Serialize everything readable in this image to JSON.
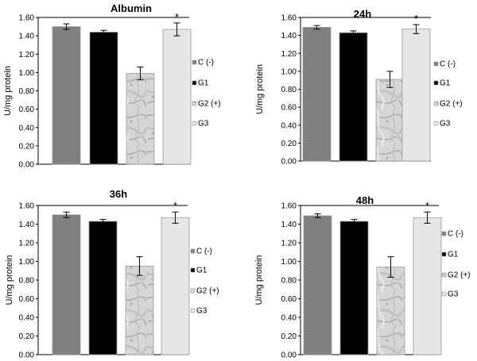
{
  "chart_data": [
    {
      "type": "bar",
      "title": "Albumin",
      "ylabel": "U/mg protein",
      "ylim": [
        0,
        1.6
      ],
      "yticks": [
        "0.00",
        "0.20",
        "0.40",
        "0.60",
        "0.80",
        "1.00",
        "1.20",
        "1.40",
        "1.60"
      ],
      "categories": [
        "C (-)",
        "G1",
        "G2 (+)",
        "G3"
      ],
      "values": [
        1.5,
        1.44,
        0.99,
        1.47
      ],
      "errors": [
        0.03,
        0.02,
        0.07,
        0.07
      ],
      "significance": [
        "",
        "",
        "",
        "*"
      ],
      "legend": [
        "C (-)",
        "G1",
        "G2 (+)",
        "G3"
      ],
      "legend_position": "right",
      "colors": [
        "#808080",
        "#000000",
        "#d2d2d2",
        "#e6e6e6"
      ]
    },
    {
      "type": "bar",
      "title": "24h",
      "ylabel": "U/mg protein",
      "ylim": [
        0,
        1.6
      ],
      "yticks": [
        "0.00",
        "0.20",
        "0.40",
        "0.60",
        "0.80",
        "1.00",
        "1.20",
        "1.40",
        "1.60"
      ],
      "categories": [
        "C (-)",
        "G1",
        "G2 (+)",
        "G3"
      ],
      "values": [
        1.49,
        1.43,
        0.91,
        1.47
      ],
      "errors": [
        0.02,
        0.02,
        0.09,
        0.05
      ],
      "significance": [
        "",
        "",
        "",
        "*"
      ],
      "legend": [
        "C (-)",
        "G1",
        "G2 (+)",
        "G3"
      ],
      "legend_position": "right",
      "colors": [
        "#808080",
        "#000000",
        "#d2d2d2",
        "#e6e6e6"
      ]
    },
    {
      "type": "bar",
      "title": "36h",
      "ylabel": "U/mg protein",
      "ylim": [
        0,
        1.6
      ],
      "yticks": [
        "0.00",
        "0.20",
        "0.40",
        "0.60",
        "0.80",
        "1.00",
        "1.20",
        "1.40",
        "1.60"
      ],
      "categories": [
        "C (-)",
        "G1",
        "G2 (+)",
        "G3"
      ],
      "values": [
        1.5,
        1.43,
        0.95,
        1.47
      ],
      "errors": [
        0.03,
        0.02,
        0.1,
        0.06
      ],
      "significance": [
        "",
        "",
        "",
        "*"
      ],
      "legend": [
        "C (-)",
        "G1",
        "G2 (+)",
        "G3"
      ],
      "legend_position": "right",
      "colors": [
        "#808080",
        "#000000",
        "#d2d2d2",
        "#e6e6e6"
      ]
    },
    {
      "type": "bar",
      "title": "48h",
      "ylabel": "U/mg protein",
      "ylim": [
        0,
        1.6
      ],
      "yticks": [
        "0.00",
        "0.20",
        "0.40",
        "0.60",
        "0.80",
        "1.00",
        "1.20",
        "1.40",
        "1.60"
      ],
      "categories": [
        "C (-)",
        "G1",
        "G2 (+)",
        "G3"
      ],
      "values": [
        1.49,
        1.43,
        0.94,
        1.47
      ],
      "errors": [
        0.02,
        0.02,
        0.11,
        0.06
      ],
      "significance": [
        "",
        "",
        "",
        "*"
      ],
      "legend": [
        "C (-)",
        "G1",
        "G2 (+)",
        "G3"
      ],
      "legend_position": "right",
      "colors": [
        "#808080",
        "#000000",
        "#d2d2d2",
        "#e6e6e6"
      ]
    }
  ]
}
